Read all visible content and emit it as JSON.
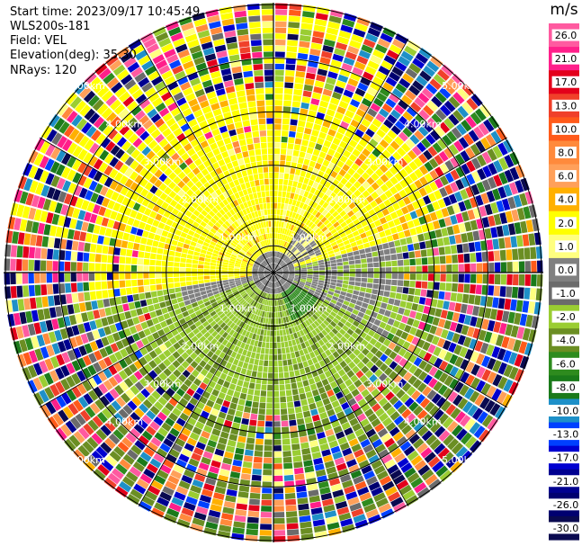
{
  "header": {
    "start_time": "Start time: 2023/09/17 10:45:49",
    "instrument": "WLS200s-181",
    "field": "Field: VEL",
    "elevation": "Elevation(deg): 35.30",
    "nrays": "NRays: 120"
  },
  "chart_data": {
    "type": "heatmap",
    "projection": "polar-ppi",
    "field": "VEL",
    "unit": "m/s",
    "n_rays": 120,
    "range_rings": [
      {
        "value": 1.0,
        "label": "1.00km"
      },
      {
        "value": 2.0,
        "label": "2.00km"
      },
      {
        "value": 3.0,
        "label": "3.00km"
      },
      {
        "value": 4.0,
        "label": "4.00km"
      },
      {
        "value": 5.0,
        "label": "5.00km"
      }
    ],
    "max_range_km": 5.0,
    "colorbar": {
      "title": "m/s",
      "ticks": [
        "26.0",
        "21.0",
        "17.0",
        "13.0",
        "10.0",
        "8.0",
        "6.0",
        "4.0",
        "2.0",
        "1.0",
        "0.0",
        "-1.0",
        "-2.0",
        "-4.0",
        "-6.0",
        "-8.0",
        "-10.0",
        "-13.0",
        "-17.0",
        "-21.0",
        "-26.0",
        "-30.0"
      ],
      "bands": [
        "#ff5aa0",
        "#ff1f8a",
        "#e3001b",
        "#f0402a",
        "#ff5a1a",
        "#ff8a3c",
        "#ffa05a",
        "#ffb000",
        "#ffff00",
        "#ffff80",
        "#808080",
        "#6b6b6b",
        "#9acd32",
        "#6b8e23",
        "#2e8b1e",
        "#1a7a1a",
        "#1e90c8",
        "#0040ff",
        "#0000d0",
        "#000090",
        "#000070",
        "#0a0a50"
      ]
    }
  }
}
